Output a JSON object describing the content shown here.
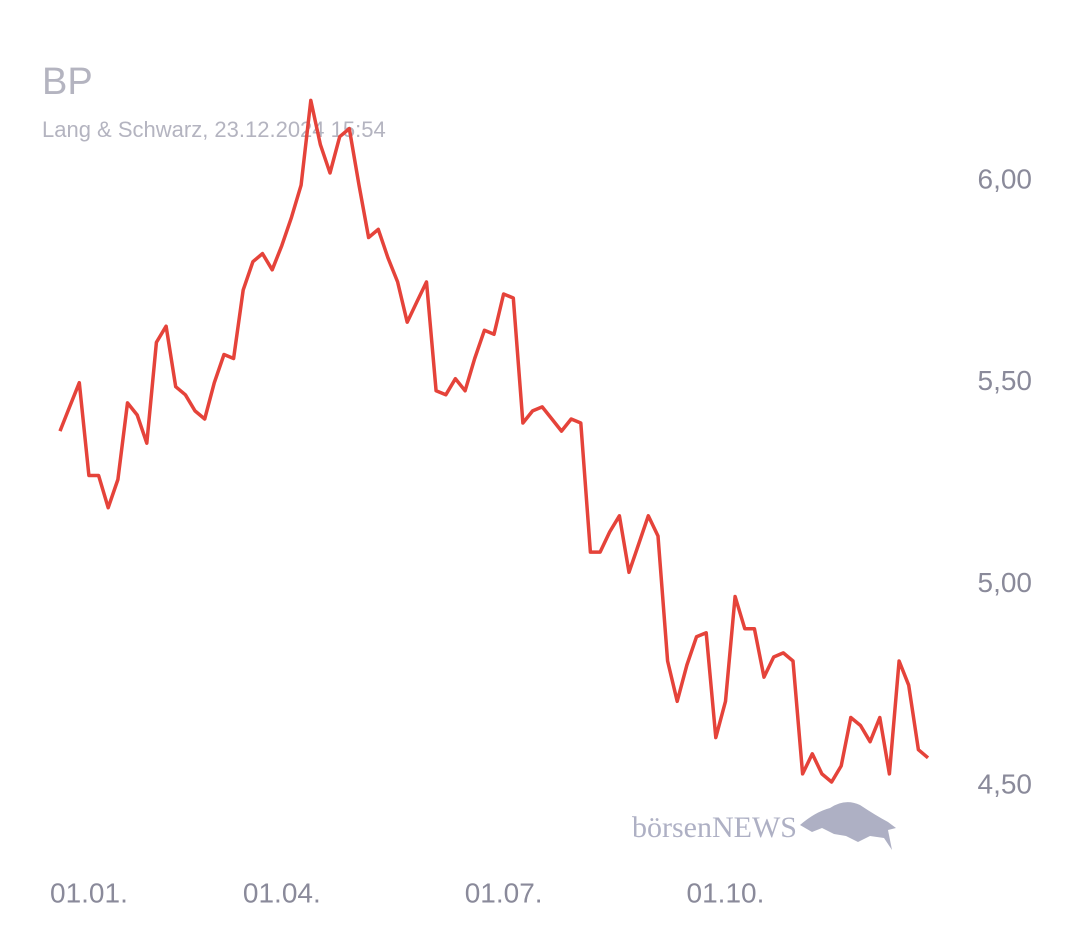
{
  "chart_data": {
    "type": "line",
    "title": "BP",
    "subtitle": "Lang & Schwarz, 23.12.2024 15:54",
    "watermark": "börsenNEWS",
    "categories": [
      null,
      null,
      null,
      "01.01.",
      null,
      null,
      null,
      null,
      null,
      null,
      null,
      null,
      null,
      null,
      null,
      null,
      null,
      null,
      null,
      null,
      null,
      null,
      null,
      "01.04.",
      null,
      null,
      null,
      null,
      null,
      null,
      null,
      null,
      null,
      null,
      null,
      null,
      null,
      null,
      null,
      null,
      null,
      null,
      null,
      null,
      null,
      null,
      "01.07.",
      null,
      null,
      null,
      null,
      null,
      null,
      null,
      null,
      null,
      null,
      null,
      null,
      null,
      null,
      null,
      null,
      null,
      null,
      null,
      null,
      null,
      null,
      "01.10.",
      null,
      null,
      null,
      null,
      null,
      null,
      null,
      null,
      null,
      null,
      null,
      null,
      null,
      null,
      null,
      null,
      null,
      null,
      null,
      null,
      null
    ],
    "values": [
      5.38,
      5.44,
      5.5,
      5.27,
      5.27,
      5.19,
      5.26,
      5.45,
      5.42,
      5.35,
      5.6,
      5.64,
      5.49,
      5.47,
      5.43,
      5.41,
      5.5,
      5.57,
      5.56,
      5.73,
      5.8,
      5.82,
      5.78,
      5.84,
      5.91,
      5.99,
      6.2,
      6.09,
      6.02,
      6.11,
      6.13,
      5.99,
      5.86,
      5.88,
      5.81,
      5.75,
      5.65,
      5.7,
      5.75,
      5.48,
      5.47,
      5.51,
      5.48,
      5.56,
      5.63,
      5.62,
      5.72,
      5.71,
      5.4,
      5.43,
      5.44,
      5.41,
      5.38,
      5.41,
      5.4,
      5.08,
      5.08,
      5.13,
      5.17,
      5.03,
      5.1,
      5.17,
      5.12,
      4.81,
      4.71,
      4.8,
      4.87,
      4.88,
      4.62,
      4.71,
      4.97,
      4.89,
      4.89,
      4.77,
      4.82,
      4.83,
      4.81,
      4.53,
      4.58,
      4.53,
      4.51,
      4.55,
      4.67,
      4.65,
      4.61,
      4.67,
      4.53,
      4.81,
      4.75,
      4.59,
      4.57
    ],
    "color": "#e5433a",
    "ylim": [
      4.3,
      6.25
    ],
    "yticks": [
      {
        "value": 4.5,
        "label": "4,50"
      },
      {
        "value": 5,
        "label": "5,00"
      },
      {
        "value": 5.5,
        "label": "5,50"
      },
      {
        "value": 6,
        "label": "6,00"
      }
    ],
    "grid": false
  }
}
